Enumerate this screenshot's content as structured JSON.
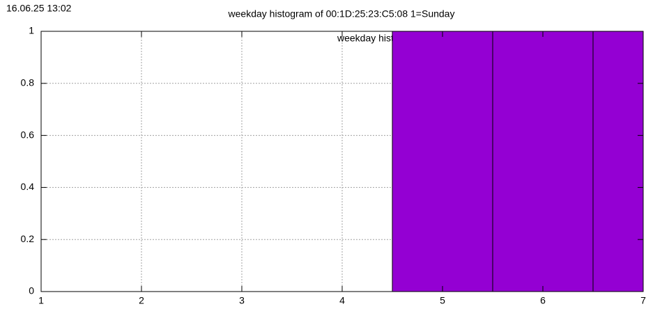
{
  "timestamp": "16.06.25 13:02",
  "chart_data": {
    "type": "bar",
    "title": "weekday histogram of 00:1D:25:23:C5:08 1=Sunday",
    "x": [
      5,
      6,
      7
    ],
    "series": [
      {
        "name": "weekday histogram",
        "color": "#9400d3",
        "values": [
          1,
          1,
          1
        ]
      }
    ],
    "xlim": [
      1,
      7
    ],
    "xticks": [
      1,
      2,
      3,
      4,
      5,
      6,
      7
    ],
    "ylim": [
      0,
      1
    ],
    "yticks": [
      0,
      0.2,
      0.4,
      0.6,
      0.8,
      1
    ],
    "grid": true,
    "legend": "top-right"
  }
}
